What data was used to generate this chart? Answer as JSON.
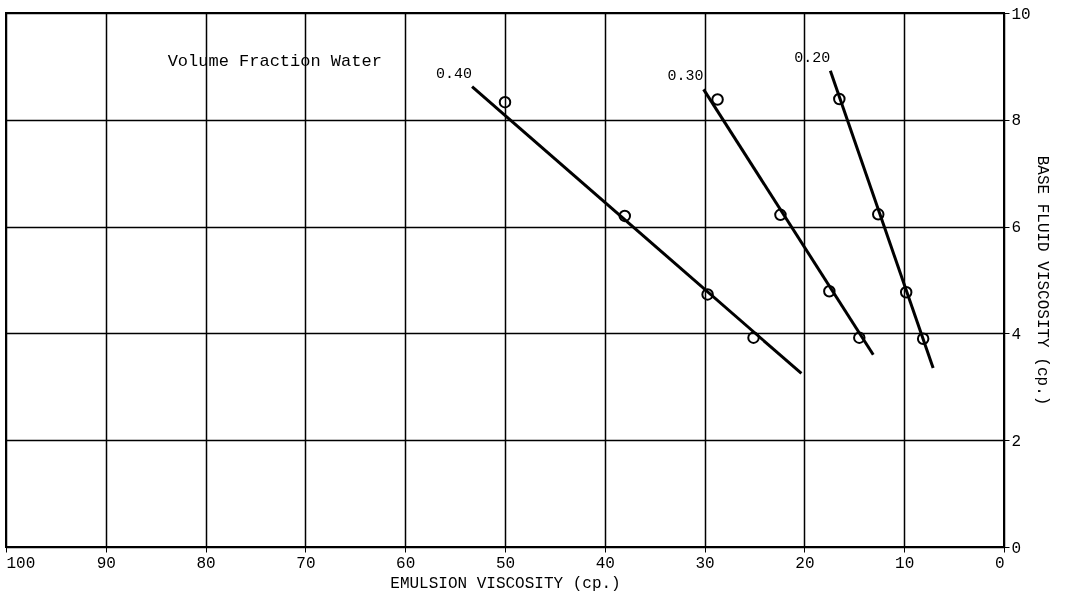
{
  "chart_data": {
    "type": "line",
    "xlabel": "EMULSION VISCOSITY (cp.)",
    "ylabel": "BASE FLUID VISCOSITY (cp.)",
    "xlim": [
      100,
      0
    ],
    "xticks": [
      100,
      90,
      80,
      70,
      60,
      50,
      40,
      30,
      20,
      10,
      0
    ],
    "ylim": [
      0,
      10
    ],
    "yticks": [
      0,
      2,
      4,
      6,
      8,
      10
    ],
    "grid": true,
    "legend": false,
    "annotations": [
      "Volume Fraction Water"
    ],
    "series": [
      {
        "name": "0.40",
        "color": "#000000",
        "marker": "none",
        "x": [
          53.3,
          20.3
        ],
        "values": [
          8.62,
          3.25
        ]
      },
      {
        "type": "scatter",
        "color": "#000000",
        "marker": "circle",
        "x": [
          50.0,
          38.0,
          29.7,
          25.1
        ],
        "values": [
          8.33,
          6.2,
          4.73,
          3.92
        ]
      },
      {
        "name": "0.30",
        "color": "#000000",
        "marker": "none",
        "x": [
          30.1,
          13.1
        ],
        "values": [
          8.57,
          3.6
        ]
      },
      {
        "type": "scatter",
        "color": "#000000",
        "marker": "circle",
        "x": [
          28.7,
          22.4,
          17.5,
          14.5
        ],
        "values": [
          8.38,
          6.22,
          4.79,
          3.92
        ]
      },
      {
        "name": "0.20",
        "color": "#000000",
        "marker": "none",
        "x": [
          17.4,
          7.1
        ],
        "values": [
          8.92,
          3.35
        ]
      },
      {
        "type": "scatter",
        "color": "#000000",
        "marker": "circle",
        "x": [
          16.5,
          12.6,
          9.8,
          8.1
        ],
        "values": [
          8.39,
          6.23,
          4.77,
          3.9
        ]
      }
    ]
  }
}
